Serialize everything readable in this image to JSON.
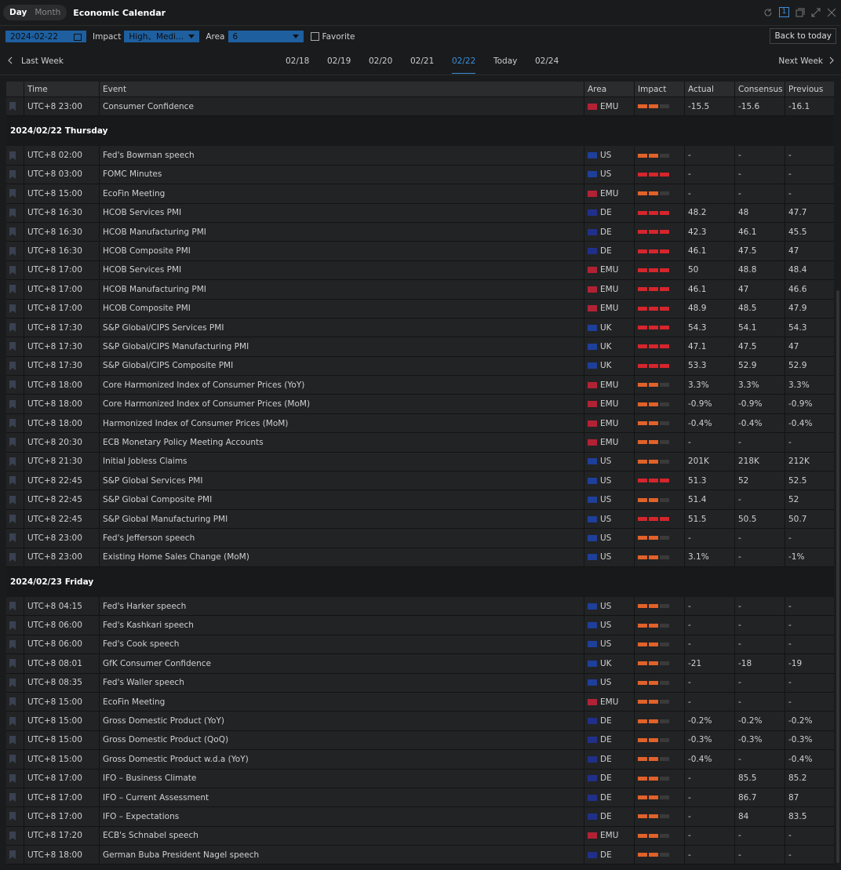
{
  "header": {
    "tabs": [
      "Day",
      "Month"
    ],
    "title": "Economic Calendar",
    "page_number": "1"
  },
  "toolbar": {
    "date": "2024-02-22",
    "impact_label": "Impact",
    "impact_value": "High、Medi...",
    "area_label": "Area",
    "area_value": "6",
    "favorite": "Favorite",
    "back_button": "Back to today"
  },
  "nav": {
    "prev": "Last Week",
    "next": "Next Week",
    "days": [
      "02/18",
      "02/19",
      "02/20",
      "02/21",
      "02/22",
      "Today",
      "02/24"
    ],
    "active": 4
  },
  "table": {
    "columns": [
      "Time",
      "Event",
      "Area",
      "Impact",
      "Actual",
      "Consensus",
      "Previous"
    ],
    "rows": [
      [
        "UTC+8 23:00",
        "Consumer Confidence",
        "EMU",
        2,
        "-15.5",
        "-15.6",
        "-16.1"
      ]
    ],
    "groups": [
      {
        "label": "2024/02/22 Thursday",
        "rows": [
          [
            "UTC+8 02:00",
            "Fed's Bowman speech",
            "US",
            2,
            "-",
            "-",
            "-"
          ],
          [
            "UTC+8 03:00",
            "FOMC Minutes",
            "US",
            3,
            "-",
            "-",
            "-"
          ],
          [
            "UTC+8 15:00",
            "EcoFin Meeting",
            "EMU",
            2,
            "-",
            "-",
            "-"
          ],
          [
            "UTC+8 16:30",
            "HCOB Services PMI",
            "DE",
            3,
            "48.2",
            "48",
            "47.7"
          ],
          [
            "UTC+8 16:30",
            "HCOB Manufacturing PMI",
            "DE",
            3,
            "42.3",
            "46.1",
            "45.5"
          ],
          [
            "UTC+8 16:30",
            "HCOB Composite PMI",
            "DE",
            3,
            "46.1",
            "47.5",
            "47"
          ],
          [
            "UTC+8 17:00",
            "HCOB Services PMI",
            "EMU",
            3,
            "50",
            "48.8",
            "48.4"
          ],
          [
            "UTC+8 17:00",
            "HCOB Manufacturing PMI",
            "EMU",
            3,
            "46.1",
            "47",
            "46.6"
          ],
          [
            "UTC+8 17:00",
            "HCOB Composite PMI",
            "EMU",
            3,
            "48.9",
            "48.5",
            "47.9"
          ],
          [
            "UTC+8 17:30",
            "S&P Global/CIPS Services PMI",
            "UK",
            3,
            "54.3",
            "54.1",
            "54.3"
          ],
          [
            "UTC+8 17:30",
            "S&P Global/CIPS Manufacturing PMI",
            "UK",
            3,
            "47.1",
            "47.5",
            "47"
          ],
          [
            "UTC+8 17:30",
            "S&P Global/CIPS Composite PMI",
            "UK",
            3,
            "53.3",
            "52.9",
            "52.9"
          ],
          [
            "UTC+8 18:00",
            "Core Harmonized Index of Consumer Prices (YoY)",
            "EMU",
            2,
            "3.3%",
            "3.3%",
            "3.3%"
          ],
          [
            "UTC+8 18:00",
            "Core Harmonized Index of Consumer Prices (MoM)",
            "EMU",
            2,
            "-0.9%",
            "-0.9%",
            "-0.9%"
          ],
          [
            "UTC+8 18:00",
            "Harmonized Index of Consumer Prices (MoM)",
            "EMU",
            2,
            "-0.4%",
            "-0.4%",
            "-0.4%"
          ],
          [
            "UTC+8 20:30",
            "ECB Monetary Policy Meeting Accounts",
            "EMU",
            2,
            "-",
            "-",
            "-"
          ],
          [
            "UTC+8 21:30",
            "Initial Jobless Claims",
            "US",
            2,
            "201K",
            "218K",
            "212K"
          ],
          [
            "UTC+8 22:45",
            "S&P Global Services PMI",
            "US",
            3,
            "51.3",
            "52",
            "52.5"
          ],
          [
            "UTC+8 22:45",
            "S&P Global Composite PMI",
            "US",
            2,
            "51.4",
            "-",
            "52"
          ],
          [
            "UTC+8 22:45",
            "S&P Global Manufacturing PMI",
            "US",
            3,
            "51.5",
            "50.5",
            "50.7"
          ],
          [
            "UTC+8 23:00",
            "Fed's Jefferson speech",
            "US",
            2,
            "-",
            "-",
            "-"
          ],
          [
            "UTC+8 23:00",
            "Existing Home Sales Change (MoM)",
            "US",
            2,
            "3.1%",
            "-",
            "-1%"
          ]
        ]
      },
      {
        "label": "2024/02/23 Friday",
        "rows": [
          [
            "UTC+8 04:15",
            "Fed's Harker speech",
            "US",
            2,
            "-",
            "-",
            "-"
          ],
          [
            "UTC+8 06:00",
            "Fed's Kashkari speech",
            "US",
            2,
            "-",
            "-",
            "-"
          ],
          [
            "UTC+8 06:00",
            "Fed's Cook speech",
            "US",
            2,
            "-",
            "-",
            "-"
          ],
          [
            "UTC+8 08:01",
            "GfK Consumer Confidence",
            "UK",
            2,
            "-21",
            "-18",
            "-19"
          ],
          [
            "UTC+8 08:35",
            "Fed's Waller speech",
            "US",
            2,
            "-",
            "-",
            "-"
          ],
          [
            "UTC+8 15:00",
            "EcoFin Meeting",
            "EMU",
            2,
            "-",
            "-",
            "-"
          ],
          [
            "UTC+8 15:00",
            "Gross Domestic Product (YoY)",
            "DE",
            2,
            "-0.2%",
            "-0.2%",
            "-0.2%"
          ],
          [
            "UTC+8 15:00",
            "Gross Domestic Product (QoQ)",
            "DE",
            2,
            "-0.3%",
            "-0.3%",
            "-0.3%"
          ],
          [
            "UTC+8 15:00",
            "Gross Domestic Product w.d.a (YoY)",
            "DE",
            2,
            "-0.4%",
            "-",
            "-0.4%"
          ],
          [
            "UTC+8 17:00",
            "IFO – Business Climate",
            "DE",
            2,
            "-",
            "85.5",
            "85.2"
          ],
          [
            "UTC+8 17:00",
            "IFO – Current Assessment",
            "DE",
            2,
            "-",
            "86.7",
            "87"
          ],
          [
            "UTC+8 17:00",
            "IFO – Expectations",
            "DE",
            2,
            "-",
            "84",
            "83.5"
          ],
          [
            "UTC+8 17:20",
            "ECB's Schnabel speech",
            "EMU",
            2,
            "-",
            "-",
            "-"
          ],
          [
            "UTC+8 18:00",
            "German Buba President Nagel speech",
            "DE",
            2,
            "-",
            "-",
            "-"
          ]
        ]
      }
    ]
  }
}
